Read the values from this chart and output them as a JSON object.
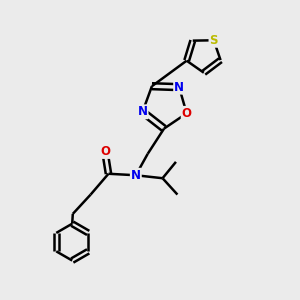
{
  "bg_color": "#ebebeb",
  "bond_color": "#000000",
  "bond_width": 1.8,
  "atom_colors": {
    "N": "#0000ee",
    "O": "#dd0000",
    "S": "#bbbb00",
    "C": "#000000"
  },
  "font_size_atom": 8.5,
  "fig_size": [
    3.0,
    3.0
  ],
  "dpi": 100,
  "xlim": [
    0,
    10
  ],
  "ylim": [
    0,
    10
  ]
}
